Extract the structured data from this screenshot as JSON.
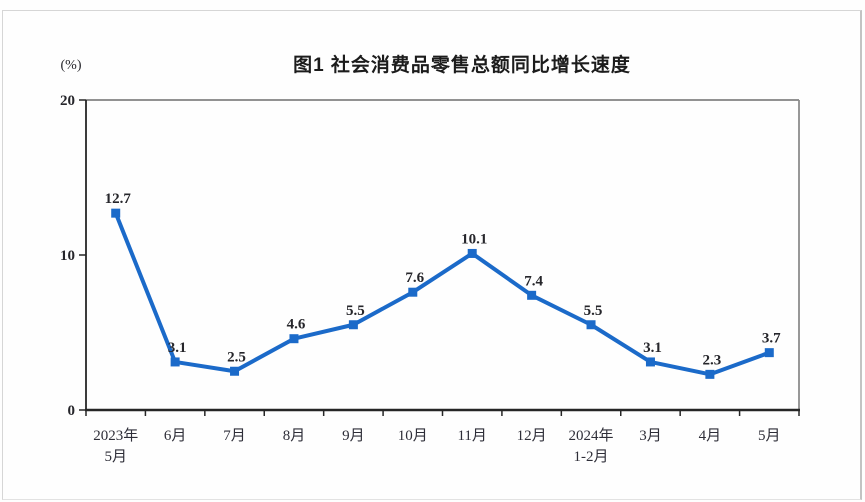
{
  "chart_data": {
    "type": "line",
    "title": "图1 社会消费品零售总额同比增长速度",
    "unit_label": "(%)",
    "categories": [
      [
        "2023年",
        "5月"
      ],
      [
        "6月"
      ],
      [
        "7月"
      ],
      [
        "8月"
      ],
      [
        "9月"
      ],
      [
        "10月"
      ],
      [
        "11月"
      ],
      [
        "12月"
      ],
      [
        "2024年",
        "1-2月"
      ],
      [
        "3月"
      ],
      [
        "4月"
      ],
      [
        "5月"
      ]
    ],
    "series": [
      {
        "name": "社会消费品零售总额同比增长速度",
        "values": [
          12.7,
          3.1,
          2.5,
          4.6,
          5.5,
          7.6,
          10.1,
          7.4,
          5.5,
          3.1,
          2.3,
          3.7
        ]
      }
    ],
    "data_labels": [
      "12.7",
      "3.1",
      "2.5",
      "4.6",
      "5.5",
      "7.6",
      "10.1",
      "7.4",
      "5.5",
      "3.1",
      "2.3",
      "3.7"
    ],
    "y_axis": {
      "min": 0,
      "max": 20,
      "ticks": [
        0,
        10,
        20
      ]
    },
    "grid": "off",
    "legend": "none",
    "colors": {
      "line": "#1b6ac9",
      "marker": "#1b6ac9",
      "axis_dark": "#262626",
      "frame_top": "#6f6f6f",
      "frame_right": "#8c8c8c",
      "text": "#26262b",
      "page_border": "#d6d6d6"
    }
  }
}
